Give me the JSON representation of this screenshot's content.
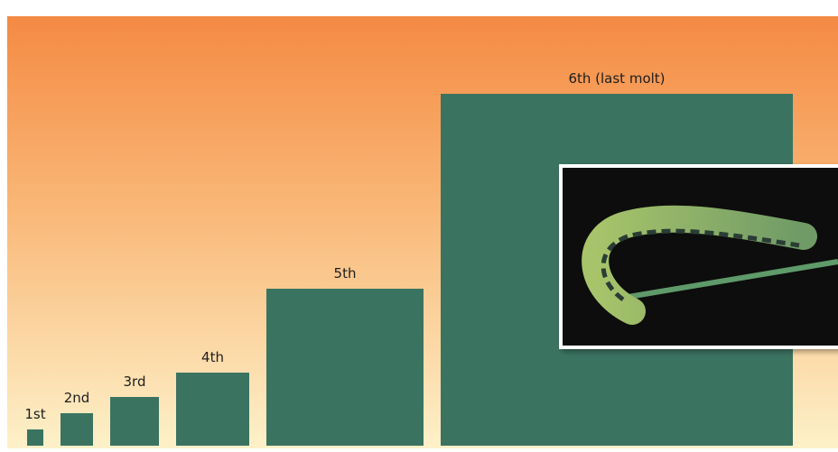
{
  "chart_data": {
    "type": "bar",
    "categories": [
      "1st",
      "2nd",
      "3rd",
      "4th",
      "5th",
      "6th (last molt)"
    ],
    "values": [
      18,
      36,
      54,
      81,
      174,
      390
    ],
    "color": "#3b7361"
  }
}
